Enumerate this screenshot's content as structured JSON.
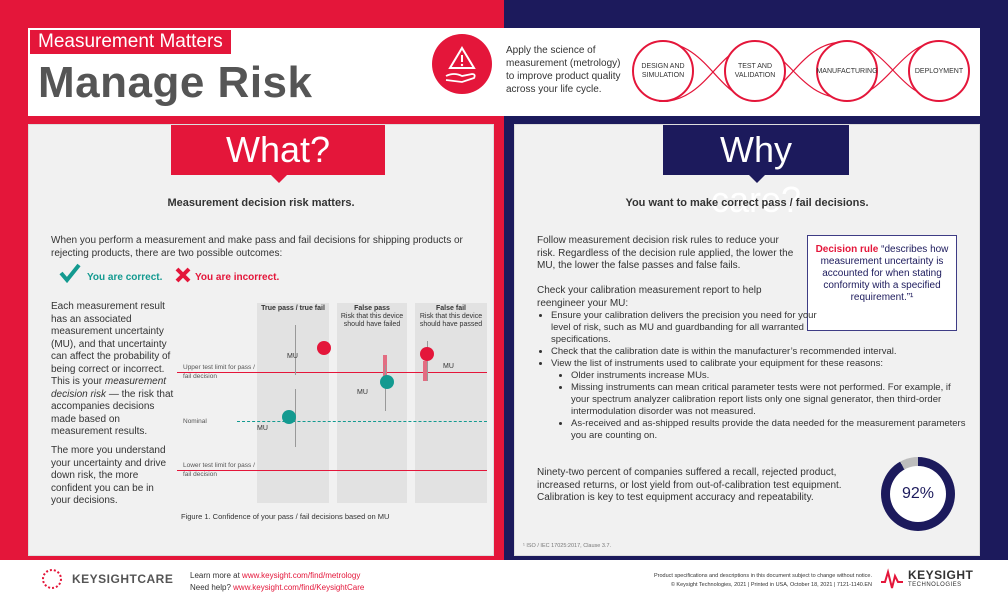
{
  "header": {
    "subtitle": "Measurement Matters",
    "title": "Manage Risk",
    "tagline": "Apply the science of measurement (metrology) to improve product quality across your life cycle.",
    "lifecycle": [
      "DESIGN AND SIMULATION",
      "TEST AND VALIDATION",
      "MANUFACTURING",
      "DEPLOYMENT"
    ]
  },
  "what": {
    "badge": "What?",
    "heading": "Measurement decision risk matters.",
    "intro": "When you perform a measurement and make pass and fail decisions for shipping products or rejecting products, there are two possible outcomes:",
    "correct": "You are correct.",
    "incorrect": "You are incorrect.",
    "body1_a": "Each measurement result has an associated measurement uncertainty (MU), and that uncertainty can affect the probability of being correct or incorrect. This is your",
    "body1_em": "measurement decision risk",
    "body1_b": "— the risk that accompanies decisions made based on measurement results.",
    "body2": "The more you understand your uncertainty and drive down risk, the more confident you can be in your decisions.",
    "figure": {
      "columns": [
        {
          "title": "True pass / true fail",
          "desc": ""
        },
        {
          "title": "False pass",
          "desc": "Risk that this device should have failed"
        },
        {
          "title": "False fail",
          "desc": "Risk that this device should have passed"
        }
      ],
      "upper_limit": "Upper test limit for pass / fail decision",
      "nominal": "Nominal",
      "lower_limit": "Lower test limit for pass / fail decision",
      "mu_label": "MU",
      "caption": "Figure 1. Confidence of your pass / fail decisions based on MU"
    }
  },
  "why": {
    "badge": "Why care?",
    "heading": "You want to make correct pass / fail decisions.",
    "para1": "Follow measurement decision risk rules to reduce your risk. Regardless of the decision rule applied, the lower the MU, the lower the false passes and false fails.",
    "para2": "Check your calibration measurement report to help reengineer your MU:",
    "bullets": [
      "Ensure your calibration delivers the precision you need for your level of risk, such as MU and guardbanding for all warranted specifications.",
      "Check that the calibration date is within the manufacturer’s recommended interval.",
      "View the list of instruments used to calibrate your equipment for these reasons:"
    ],
    "sub_bullets": [
      "Older instruments increase MUs.",
      "Missing instruments can mean critical parameter tests were not performed. For example, if your spectrum analyzer calibration report lists only one signal generator, then third-order intermodulation disorder was not measured.",
      "As-received and as-shipped results provide the data needed for the measurement parameters you are counting on."
    ],
    "rule_title": "Decision rule",
    "rule_text": "“describes how measurement uncertainty is accounted for when stating conformity with a specified requirement.”¹",
    "stat_text": "Ninety-two percent of companies suffered a recall, rejected product, increased returns, or lost yield from out-of-calibration test equipment. Calibration is key to test equipment accuracy and repeatability.",
    "stat_value": "92%",
    "stat_fraction": 0.92,
    "footnote": "¹ ISO / IEC 17025:2017, Clause 3.7."
  },
  "footer": {
    "care_logo": "KEYSIGHTCARE",
    "learn_prefix": "Learn more at",
    "learn_url": "www.keysight.com/find/metrology",
    "help_prefix": "Need help?",
    "help_url": "www.keysight.com/find/KeysightCare",
    "disclaimer": "Product specifications and descriptions in this document subject to change without notice.",
    "copyright": "© Keysight Technologies, 2021 | Printed in USA, October 18, 2021 | 7121-1140.EN",
    "brand": "KEYSIGHT",
    "brand_sub": "TECHNOLOGIES"
  },
  "colors": {
    "red": "#e4163a",
    "navy": "#1c1a5c",
    "teal": "#139a90",
    "check": "#139a90"
  }
}
